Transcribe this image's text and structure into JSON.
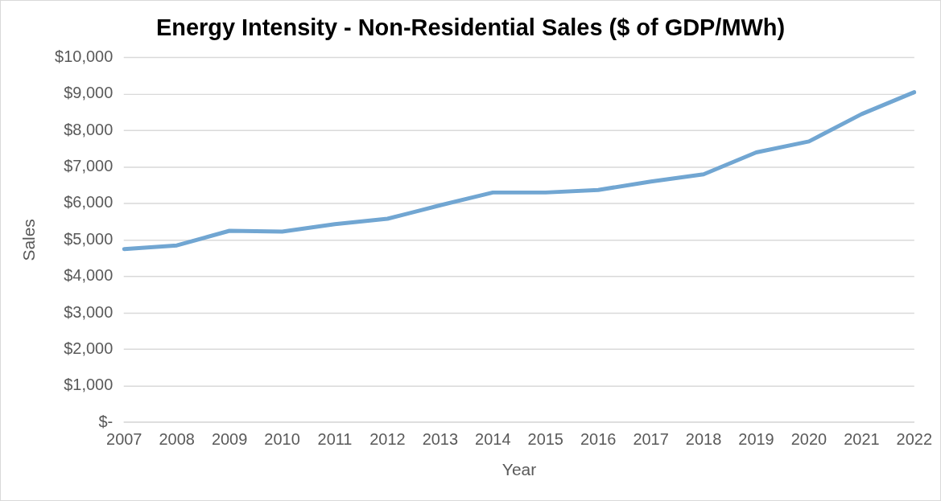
{
  "chart_data": {
    "type": "line",
    "title": "Energy Intensity - Non-Residential Sales ($ of GDP/MWh)",
    "xlabel": "Year",
    "ylabel": "Sales",
    "categories": [
      "2007",
      "2008",
      "2009",
      "2010",
      "2011",
      "2012",
      "2013",
      "2014",
      "2015",
      "2016",
      "2017",
      "2018",
      "2019",
      "2020",
      "2021",
      "2022"
    ],
    "series": [
      {
        "color": "#71a6d2",
        "values": [
          4750,
          4850,
          5250,
          5230,
          5430,
          5580,
          5950,
          6300,
          6300,
          6370,
          6600,
          6800,
          7400,
          7700,
          8450,
          9050
        ]
      }
    ],
    "ylim": [
      0,
      10000
    ],
    "yticks": [
      {
        "value": 0,
        "label": "$-"
      },
      {
        "value": 1000,
        "label": "$1,000"
      },
      {
        "value": 2000,
        "label": "$2,000"
      },
      {
        "value": 3000,
        "label": "$3,000"
      },
      {
        "value": 4000,
        "label": "$4,000"
      },
      {
        "value": 5000,
        "label": "$5,000"
      },
      {
        "value": 6000,
        "label": "$6,000"
      },
      {
        "value": 7000,
        "label": "$7,000"
      },
      {
        "value": 8000,
        "label": "$8,000"
      },
      {
        "value": 9000,
        "label": "$9,000"
      },
      {
        "value": 10000,
        "label": "$10,000"
      }
    ],
    "grid": "y",
    "legend": false,
    "marker": "none",
    "line_style": "solid"
  }
}
